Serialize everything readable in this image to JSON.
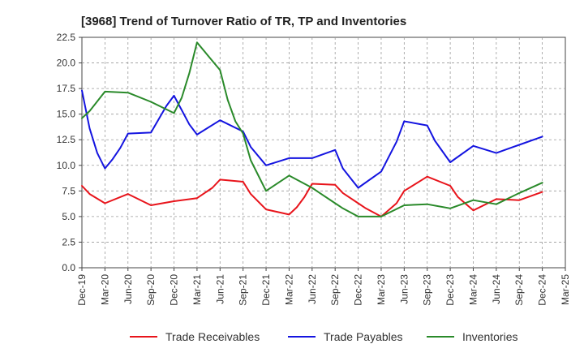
{
  "chart_data": {
    "type": "line",
    "title": "[3968]  Trend of Turnover Ratio of TR, TP and Inventories",
    "xlabel": "",
    "ylabel": "",
    "ylim": [
      0,
      22.5
    ],
    "yticks": [
      "0.0",
      "2.5",
      "5.0",
      "7.5",
      "10.0",
      "12.5",
      "15.0",
      "17.5",
      "20.0",
      "22.5"
    ],
    "x_start": "2019-12",
    "x_end": "2025-03",
    "xtick_labels": [
      "Dec-19",
      "Mar-20",
      "Jun-20",
      "Sep-20",
      "Dec-20",
      "Mar-21",
      "Jun-21",
      "Sep-21",
      "Dec-21",
      "Mar-22",
      "Jun-22",
      "Sep-22",
      "Dec-22",
      "Mar-23",
      "Jun-23",
      "Sep-23",
      "Dec-23",
      "Mar-24",
      "Jun-24",
      "Sep-24",
      "Dec-24",
      "Mar-25"
    ],
    "grid": true,
    "legend_position": "bottom",
    "series": [
      {
        "name": "Trade Receivables",
        "color": "#e8141b",
        "points": [
          [
            "2019-12",
            8.0
          ],
          [
            "2020-01",
            7.2
          ],
          [
            "2020-03",
            6.3
          ],
          [
            "2020-06",
            7.2
          ],
          [
            "2020-09",
            6.1
          ],
          [
            "2020-12",
            6.5
          ],
          [
            "2021-03",
            6.8
          ],
          [
            "2021-05",
            7.8
          ],
          [
            "2021-06",
            8.6
          ],
          [
            "2021-09",
            8.4
          ],
          [
            "2021-10",
            7.2
          ],
          [
            "2021-12",
            5.7
          ],
          [
            "2022-03",
            5.2
          ],
          [
            "2022-04",
            5.9
          ],
          [
            "2022-05",
            6.9
          ],
          [
            "2022-06",
            8.2
          ],
          [
            "2022-09",
            8.1
          ],
          [
            "2022-10",
            7.3
          ],
          [
            "2022-12",
            6.3
          ],
          [
            "2023-01",
            5.8
          ],
          [
            "2023-03",
            5.0
          ],
          [
            "2023-05",
            6.3
          ],
          [
            "2023-06",
            7.5
          ],
          [
            "2023-09",
            8.9
          ],
          [
            "2023-12",
            8.0
          ],
          [
            "2024-01",
            6.9
          ],
          [
            "2024-03",
            5.6
          ],
          [
            "2024-06",
            6.7
          ],
          [
            "2024-09",
            6.6
          ],
          [
            "2024-12",
            7.4
          ]
        ]
      },
      {
        "name": "Trade Payables",
        "color": "#1414e0",
        "points": [
          [
            "2019-12",
            17.3
          ],
          [
            "2020-01",
            13.6
          ],
          [
            "2020-02",
            11.2
          ],
          [
            "2020-03",
            9.7
          ],
          [
            "2020-04",
            10.6
          ],
          [
            "2020-05",
            11.7
          ],
          [
            "2020-06",
            13.1
          ],
          [
            "2020-09",
            13.2
          ],
          [
            "2020-11",
            15.8
          ],
          [
            "2020-12",
            16.8
          ],
          [
            "2021-01",
            15.4
          ],
          [
            "2021-02",
            14.0
          ],
          [
            "2021-03",
            13.0
          ],
          [
            "2021-06",
            14.4
          ],
          [
            "2021-09",
            13.3
          ],
          [
            "2021-10",
            11.8
          ],
          [
            "2021-12",
            10.0
          ],
          [
            "2022-03",
            10.7
          ],
          [
            "2022-06",
            10.7
          ],
          [
            "2022-09",
            11.5
          ],
          [
            "2022-10",
            9.7
          ],
          [
            "2022-12",
            7.8
          ],
          [
            "2023-03",
            9.4
          ],
          [
            "2023-05",
            12.3
          ],
          [
            "2023-06",
            14.3
          ],
          [
            "2023-09",
            13.9
          ],
          [
            "2023-10",
            12.4
          ],
          [
            "2023-12",
            10.3
          ],
          [
            "2024-03",
            11.9
          ],
          [
            "2024-06",
            11.2
          ],
          [
            "2024-09",
            12.0
          ],
          [
            "2024-12",
            12.8
          ]
        ]
      },
      {
        "name": "Inventories",
        "color": "#2a8a2a",
        "points": [
          [
            "2019-12",
            14.6
          ],
          [
            "2020-01",
            15.3
          ],
          [
            "2020-03",
            17.2
          ],
          [
            "2020-06",
            17.1
          ],
          [
            "2020-09",
            16.2
          ],
          [
            "2020-12",
            15.1
          ],
          [
            "2021-01",
            16.6
          ],
          [
            "2021-02",
            19.0
          ],
          [
            "2021-03",
            22.0
          ],
          [
            "2021-06",
            19.3
          ],
          [
            "2021-07",
            16.4
          ],
          [
            "2021-08",
            14.3
          ],
          [
            "2021-09",
            13.1
          ],
          [
            "2021-10",
            10.5
          ],
          [
            "2021-12",
            7.5
          ],
          [
            "2022-03",
            9.0
          ],
          [
            "2022-06",
            7.8
          ],
          [
            "2022-07",
            7.3
          ],
          [
            "2022-09",
            6.3
          ],
          [
            "2022-10",
            5.8
          ],
          [
            "2022-12",
            5.0
          ],
          [
            "2023-03",
            5.0
          ],
          [
            "2023-06",
            6.1
          ],
          [
            "2023-09",
            6.2
          ],
          [
            "2023-12",
            5.8
          ],
          [
            "2024-03",
            6.6
          ],
          [
            "2024-06",
            6.2
          ],
          [
            "2024-09",
            7.3
          ],
          [
            "2024-12",
            8.3
          ]
        ]
      }
    ]
  }
}
